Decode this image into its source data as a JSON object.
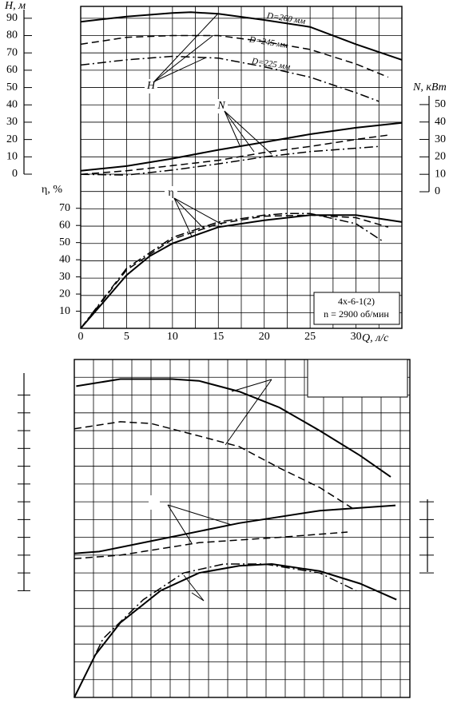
{
  "chart_data": [
    {
      "type": "line",
      "xlabel": "Q, л/с",
      "xlim": [
        0,
        35
      ],
      "xticks": [
        0,
        5,
        10,
        15,
        20,
        25,
        30
      ],
      "xgrid": [
        0,
        2.5,
        5,
        7.5,
        10,
        12.5,
        15,
        17.5,
        20,
        22.5,
        25,
        27.5,
        30,
        32.5,
        35
      ],
      "ylabel": "H, м",
      "ylim": [
        0,
        95
      ],
      "yticks": [
        0,
        10,
        20,
        30,
        40,
        50,
        60,
        70,
        80,
        90
      ],
      "ygrid": [
        -80,
        -70,
        -60,
        -50,
        -40,
        -30,
        -20,
        -10,
        0,
        10,
        20,
        30,
        40,
        50,
        60,
        70,
        80,
        90
      ],
      "y2label": "N, кВт",
      "y2lim": [
        0,
        55
      ],
      "y2ticks": [
        0,
        10,
        20,
        30,
        40,
        50
      ],
      "y3label": "η, %",
      "y3lim": [
        0,
        75
      ],
      "y3ticks": [
        10,
        20,
        30,
        40,
        50,
        60,
        70
      ],
      "series": [
        {
          "name": "D=260 мм",
          "color": "#000000",
          "dash": "solid",
          "x": [
            0,
            5,
            10,
            12,
            15,
            20,
            25,
            30,
            35
          ],
          "values": [
            88,
            91,
            93,
            93.5,
            92.6,
            89,
            85,
            75,
            66
          ]
        },
        {
          "name": "D=245 мм",
          "color": "#000000",
          "dash": "dashed",
          "x": [
            0,
            5,
            10,
            15,
            20,
            25,
            30,
            33.5
          ],
          "values": [
            75,
            79,
            80,
            80,
            76.5,
            72,
            63.6,
            56
          ]
        },
        {
          "name": "D=225 мм",
          "color": "#000000",
          "dash": "dashdot",
          "x": [
            0,
            5,
            10,
            15,
            20,
            25,
            30,
            32.5
          ],
          "values": [
            63,
            66,
            68,
            67,
            62,
            56,
            47,
            42
          ]
        },
        {
          "color": "#000000",
          "dash": "solid",
          "axis": "y2",
          "x": [
            0,
            5,
            10,
            15,
            20,
            25,
            30,
            35
          ],
          "values": [
            12,
            14.7,
            19,
            24,
            28.4,
            33,
            36.7,
            39.5
          ]
        },
        {
          "color": "#000000",
          "dash": "dashed",
          "axis": "y2",
          "x": [
            0,
            5,
            10,
            15,
            20,
            25,
            30,
            33.5
          ],
          "values": [
            10,
            12,
            15,
            18,
            22.5,
            26,
            30,
            32.5
          ]
        },
        {
          "color": "#000000",
          "dash": "dashdot",
          "axis": "y2",
          "x": [
            0,
            5,
            10,
            15,
            20,
            25,
            30,
            32.5
          ],
          "values": [
            10,
            9.6,
            12.4,
            16,
            20,
            23,
            25,
            26
          ]
        },
        {
          "color": "#000000",
          "dash": "solid",
          "axis": "y3",
          "x": [
            0,
            2.5,
            5,
            7.5,
            10,
            15,
            20,
            25,
            30,
            35
          ],
          "values": [
            0,
            15.4,
            31,
            42,
            49.5,
            59,
            63,
            66,
            66,
            62
          ]
        },
        {
          "color": "#000000",
          "dash": "dashed",
          "axis": "y3",
          "x": [
            0,
            5,
            10,
            15,
            20,
            25,
            30,
            33.5
          ],
          "values": [
            0,
            34,
            52,
            61,
            65.4,
            66,
            64.5,
            59
          ]
        },
        {
          "color": "#000000",
          "dash": "dashdot",
          "axis": "y3",
          "x": [
            0,
            5,
            10,
            15,
            20,
            22.5,
            25,
            30,
            33
          ],
          "values": [
            0,
            35,
            53,
            62,
            66,
            67,
            67,
            61,
            50.5
          ]
        }
      ],
      "annotations": [
        "H",
        "N",
        "η"
      ],
      "note": [
        "4х-6-1(2)",
        "n = 2900 об/мин"
      ]
    },
    {
      "type": "line",
      "xlim": [
        0,
        17.5
      ],
      "xgrid": [
        0,
        1,
        2,
        3,
        4,
        5,
        6,
        7,
        8,
        9,
        10,
        11,
        12,
        13,
        14,
        15,
        16,
        17,
        17.5
      ],
      "ylim": [
        0,
        19
      ],
      "ygrid": [
        0,
        1,
        2,
        3,
        4,
        5,
        6,
        7,
        8,
        9,
        10,
        11,
        12,
        13,
        14,
        15,
        16,
        17,
        18,
        19
      ],
      "ytick_marks": [
        6,
        7,
        8,
        9,
        10,
        11,
        12,
        13,
        14,
        15,
        16,
        17
      ],
      "y2tick_marks": [
        7,
        8,
        9,
        10,
        11
      ],
      "series": [
        {
          "color": "#000000",
          "dash": "solid",
          "x": [
            0.1,
            2.4,
            5.1,
            6.5,
            8.6,
            10.7,
            12.8,
            14.9,
            16.5
          ],
          "values": [
            17.5,
            17.9,
            17.9,
            17.8,
            17.2,
            16.3,
            15,
            13.6,
            12.4
          ]
        },
        {
          "color": "#000000",
          "dash": "dashed",
          "x": [
            0,
            2.4,
            4,
            6.5,
            8.6,
            10.7,
            12.8,
            14.7
          ],
          "values": [
            15.1,
            15.5,
            15.4,
            14.7,
            14.1,
            12.9,
            11.8,
            10.5
          ]
        },
        {
          "color": "#000000",
          "dash": "solid",
          "x": [
            0,
            1.3,
            4.5,
            8.6,
            12.8,
            16.75
          ],
          "values": [
            8.1,
            8.2,
            8.9,
            9.8,
            10.5,
            10.8
          ]
        },
        {
          "color": "#000000",
          "dash": "dashed",
          "x": [
            0,
            2.4,
            6.5,
            10.7,
            14.25
          ],
          "values": [
            7.8,
            8,
            8.7,
            9,
            9.3
          ]
        },
        {
          "color": "#000000",
          "dash": "solid",
          "x": [
            0,
            1.1,
            2.4,
            4.5,
            6.5,
            8.6,
            10.3,
            12.8,
            14.9,
            16.8
          ],
          "values": [
            0,
            2.4,
            4.2,
            6,
            7,
            7.4,
            7.5,
            7.1,
            6.4,
            5.5
          ]
        },
        {
          "color": "#000000",
          "dash": "dashdot",
          "x": [
            0,
            1.5,
            3.6,
            5.7,
            7.8,
            9.9,
            12.8,
            14.7
          ],
          "values": [
            0,
            3.3,
            5.5,
            7,
            7.5,
            7.5,
            7,
            6
          ]
        }
      ]
    }
  ]
}
